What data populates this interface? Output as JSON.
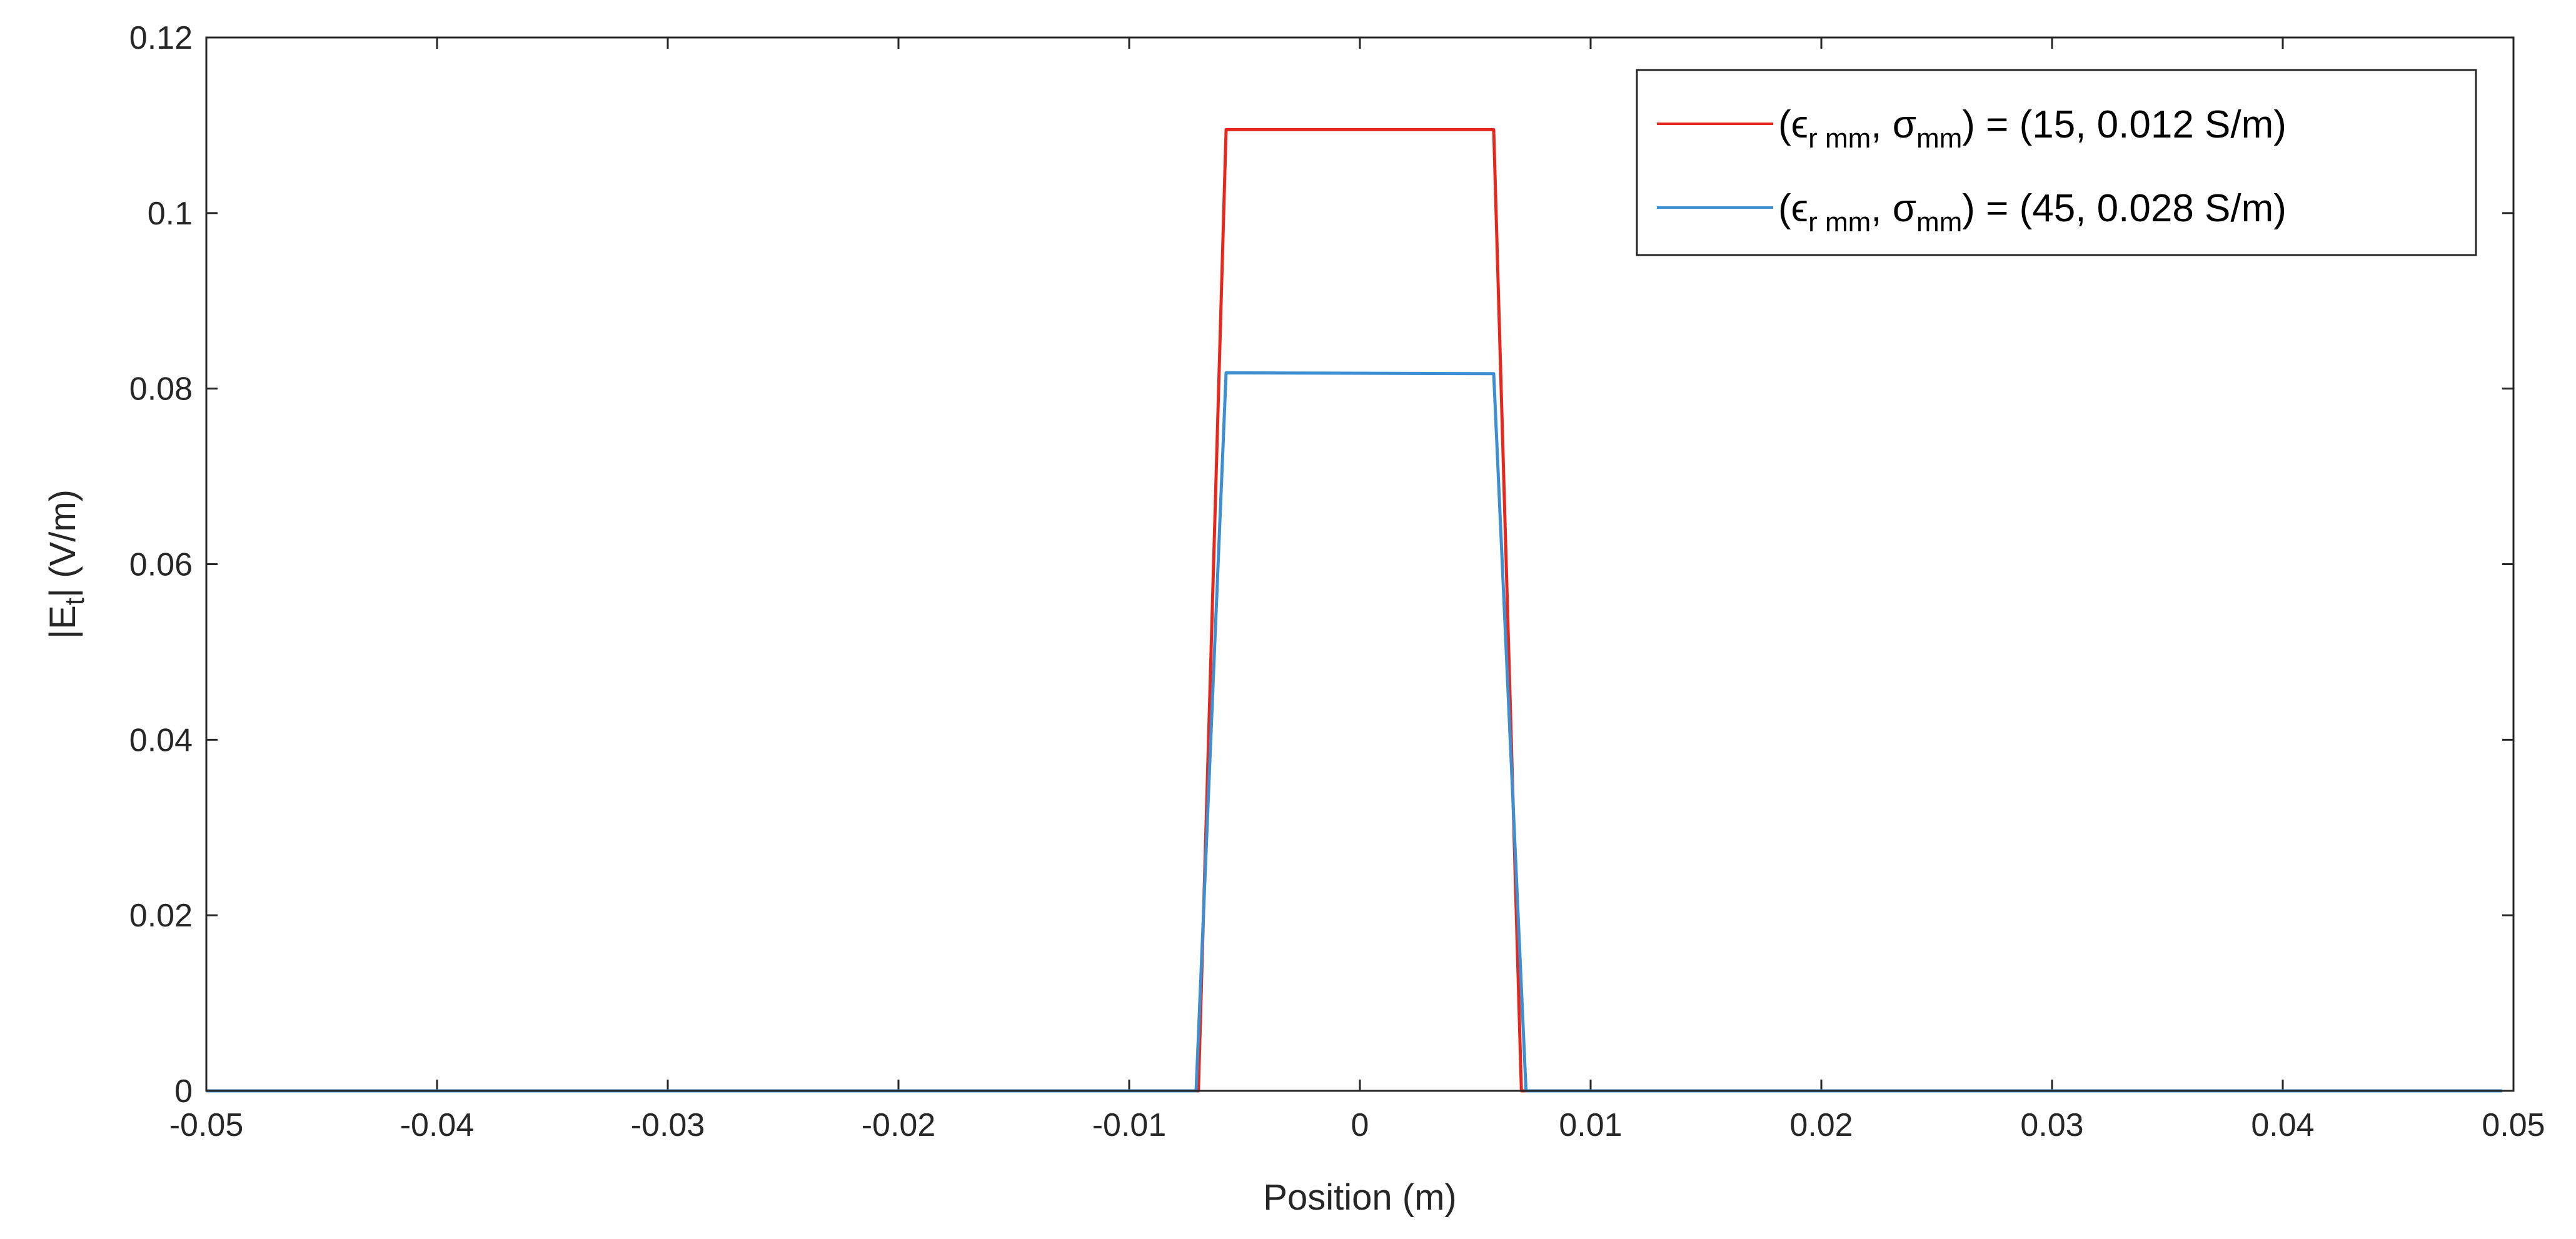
{
  "chart_data": {
    "type": "line",
    "title": "",
    "xlabel": "Position (m)",
    "ylabel": {
      "prefix": "|E",
      "subscript": "t",
      "suffix": "|  (V/m)"
    },
    "xlim": [
      -0.05,
      0.05
    ],
    "ylim": [
      0,
      0.12
    ],
    "xticks": [
      -0.05,
      -0.04,
      -0.03,
      -0.02,
      -0.01,
      0,
      0.01,
      0.02,
      0.03,
      0.04,
      0.05
    ],
    "xtick_labels": [
      "-0.05",
      "-0.04",
      "-0.03",
      "-0.02",
      "-0.01",
      "0",
      "0.01",
      "0.02",
      "0.03",
      "0.04",
      "0.05"
    ],
    "yticks": [
      0,
      0.02,
      0.04,
      0.06,
      0.08,
      0.1,
      0.12
    ],
    "ytick_labels": [
      "0",
      "0.02",
      "0.04",
      "0.06",
      "0.08",
      "0.1",
      "0.12"
    ],
    "grid": false,
    "legend_position": "top-right",
    "series": [
      {
        "name": "(ε_r mm, σ_mm) = (15, 0.012 S/m)",
        "legend": {
          "eps": "ϵ",
          "eps_sub": "r mm",
          "sep": ", ",
          "sigma": "σ",
          "sigma_sub": "mm",
          "rest": ") = (15, 0.012 S/m)"
        },
        "color": "#e8271c",
        "x": [
          -0.05,
          -0.007,
          -0.0058,
          0.0058,
          0.007,
          0.0495
        ],
        "y": [
          0,
          0,
          0.1095,
          0.1095,
          0,
          0
        ]
      },
      {
        "name": "(ε_r mm, σ_mm) = (45, 0.028 S/m)",
        "legend": {
          "eps": "ϵ",
          "eps_sub": "r mm",
          "sep": ", ",
          "sigma": "σ",
          "sigma_sub": "mm",
          "rest": ") = (45, 0.028 S/m)"
        },
        "color": "#3d8fd1",
        "x": [
          -0.05,
          -0.0071,
          -0.0058,
          0.0058,
          0.0072,
          0.0495
        ],
        "y": [
          0,
          0,
          0.0818,
          0.0817,
          0,
          0
        ]
      }
    ]
  }
}
